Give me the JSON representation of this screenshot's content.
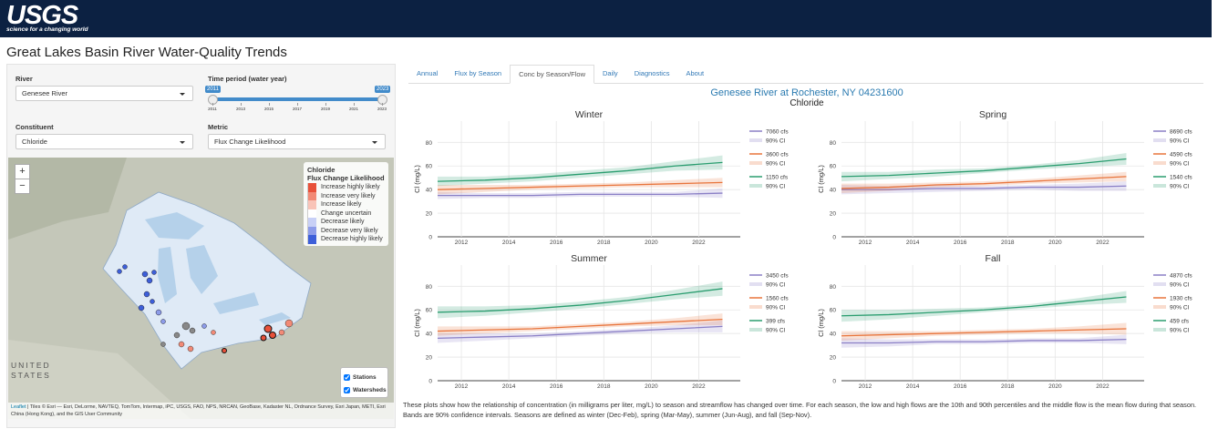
{
  "header": {
    "logo": "USGS",
    "tagline": "science for a changing world"
  },
  "title": "Great Lakes Basin River Water-Quality Trends",
  "controls": {
    "river": {
      "label": "River",
      "value": "Genesee River"
    },
    "time_period": {
      "label": "Time period (water year)",
      "min": 2011,
      "max": 2023,
      "ticks": [
        2011,
        2013,
        2015,
        2017,
        2019,
        2021,
        2023
      ]
    },
    "constituent": {
      "label": "Constituent",
      "value": "Chloride"
    },
    "metric": {
      "label": "Metric",
      "value": "Flux Change Likelihood"
    }
  },
  "map": {
    "zoom_in": "+",
    "zoom_out": "−",
    "labels": [
      "UNITED",
      "STATES"
    ],
    "legend": {
      "title": "Chloride",
      "subtitle": "Flux Change Likelihood",
      "items": [
        {
          "label": "Increase highly likely",
          "color": "#e8513a"
        },
        {
          "label": "Increase very likely",
          "color": "#f28a76"
        },
        {
          "label": "Increase likely",
          "color": "#f9c4b8"
        },
        {
          "label": "Change uncertain",
          "color": "#ffffff"
        },
        {
          "label": "Decrease likely",
          "color": "#c8d0f6"
        },
        {
          "label": "Decrease very likely",
          "color": "#8d9ce9"
        },
        {
          "label": "Decrease highly likely",
          "color": "#3d5fd9"
        }
      ]
    },
    "layers": [
      "Stations",
      "Watersheds"
    ],
    "attribution_link": "Leaflet",
    "attribution": "| Tiles © Esri — Esri, DeLorme, NAVTEQ, TomTom, Intermap, iPC, USGS, FAO, NPS, NRCAN, GeoBase, Kadaster NL, Ordnance Survey, Esri Japan, METI, Esri China (Hong Kong), and the GIS User Community"
  },
  "tabs": {
    "items": [
      "Annual",
      "Flux by Season",
      "Conc by Season/Flow",
      "Daily",
      "Diagnostics",
      "About"
    ],
    "active": 2
  },
  "plot_title": "Genesee River at Rochester, NY 04231600",
  "plot_subtitle": "Chloride",
  "plots": [
    {
      "type": "line",
      "title": "Winter",
      "y_label": "Cl (mg/L)",
      "x": [
        2011,
        2013,
        2015,
        2017,
        2019,
        2021,
        2023
      ],
      "xlim": [
        2011,
        2023.75
      ],
      "xticks": [
        2012,
        2014,
        2016,
        2018,
        2020,
        2022
      ],
      "ylim": [
        0,
        98
      ],
      "yticks": [
        0,
        20,
        40,
        60,
        80
      ],
      "grid": true,
      "series": [
        {
          "name": "7060 cfs",
          "color": "#8a7fc6",
          "ci_label": "90% CI",
          "values": [
            35,
            35,
            35,
            36,
            36,
            36,
            37
          ],
          "ci_low": [
            32,
            33,
            33,
            34,
            34,
            34,
            33
          ],
          "ci_high": [
            38,
            37,
            37,
            38,
            38,
            38,
            41
          ]
        },
        {
          "name": "3600 cfs",
          "color": "#e8743b",
          "ci_label": "90% CI",
          "values": [
            40,
            41,
            42,
            43,
            44,
            45,
            46
          ],
          "ci_low": [
            36,
            38,
            40,
            41,
            42,
            42,
            42
          ],
          "ci_high": [
            44,
            44,
            44,
            45,
            46,
            48,
            50
          ]
        },
        {
          "name": "1150 cfs",
          "color": "#2a9d6f",
          "ci_label": "90% CI",
          "values": [
            47,
            48,
            50,
            53,
            56,
            60,
            63
          ],
          "ci_low": [
            43,
            45,
            47,
            50,
            53,
            56,
            57
          ],
          "ci_high": [
            51,
            51,
            53,
            56,
            59,
            64,
            69
          ]
        }
      ]
    },
    {
      "type": "line",
      "title": "Spring",
      "y_label": "Cl (mg/L)",
      "x": [
        2011,
        2013,
        2015,
        2017,
        2019,
        2021,
        2023
      ],
      "xlim": [
        2011,
        2023.75
      ],
      "xticks": [
        2012,
        2014,
        2016,
        2018,
        2020,
        2022
      ],
      "ylim": [
        0,
        98
      ],
      "yticks": [
        0,
        20,
        40,
        60,
        80
      ],
      "grid": true,
      "series": [
        {
          "name": "8690 cfs",
          "color": "#8a7fc6",
          "ci_label": "90% CI",
          "values": [
            40,
            40,
            41,
            41,
            42,
            42,
            43
          ],
          "ci_low": [
            36,
            37,
            38,
            39,
            40,
            39,
            39
          ],
          "ci_high": [
            44,
            43,
            44,
            43,
            44,
            45,
            47
          ]
        },
        {
          "name": "4590 cfs",
          "color": "#e8743b",
          "ci_label": "90% CI",
          "values": [
            41,
            42,
            44,
            45,
            47,
            49,
            51
          ],
          "ci_low": [
            37,
            39,
            42,
            43,
            45,
            46,
            47
          ],
          "ci_high": [
            45,
            45,
            46,
            47,
            49,
            52,
            55
          ]
        },
        {
          "name": "1540 cfs",
          "color": "#2a9d6f",
          "ci_label": "90% CI",
          "values": [
            51,
            52,
            54,
            56,
            59,
            62,
            66
          ],
          "ci_low": [
            47,
            49,
            51,
            54,
            57,
            59,
            61
          ],
          "ci_high": [
            55,
            55,
            57,
            58,
            61,
            65,
            71
          ]
        }
      ]
    },
    {
      "type": "line",
      "title": "Summer",
      "y_label": "Cl (mg/L)",
      "x": [
        2011,
        2013,
        2015,
        2017,
        2019,
        2021,
        2023
      ],
      "xlim": [
        2011,
        2023.75
      ],
      "xticks": [
        2012,
        2014,
        2016,
        2018,
        2020,
        2022
      ],
      "ylim": [
        0,
        98
      ],
      "yticks": [
        0,
        20,
        40,
        60,
        80
      ],
      "grid": true,
      "series": [
        {
          "name": "3450 cfs",
          "color": "#8a7fc6",
          "ci_label": "90% CI",
          "values": [
            36,
            37,
            38,
            40,
            42,
            44,
            46
          ],
          "ci_low": [
            32,
            34,
            36,
            38,
            40,
            41,
            41
          ],
          "ci_high": [
            40,
            40,
            40,
            42,
            44,
            47,
            51
          ]
        },
        {
          "name": "1560 cfs",
          "color": "#e8743b",
          "ci_label": "90% CI",
          "values": [
            42,
            43,
            44,
            46,
            48,
            50,
            52
          ],
          "ci_low": [
            38,
            40,
            42,
            44,
            46,
            47,
            47
          ],
          "ci_high": [
            46,
            46,
            46,
            48,
            50,
            53,
            57
          ]
        },
        {
          "name": "399 cfs",
          "color": "#2a9d6f",
          "ci_label": "90% CI",
          "values": [
            58,
            59,
            61,
            64,
            68,
            73,
            78
          ],
          "ci_low": [
            53,
            55,
            58,
            61,
            65,
            69,
            72
          ],
          "ci_high": [
            63,
            63,
            64,
            67,
            71,
            77,
            84
          ]
        }
      ]
    },
    {
      "type": "line",
      "title": "Fall",
      "y_label": "Cl (mg/L)",
      "x": [
        2011,
        2013,
        2015,
        2017,
        2019,
        2021,
        2023
      ],
      "xlim": [
        2011,
        2023.75
      ],
      "xticks": [
        2012,
        2014,
        2016,
        2018,
        2020,
        2022
      ],
      "ylim": [
        0,
        98
      ],
      "yticks": [
        0,
        20,
        40,
        60,
        80
      ],
      "grid": true,
      "series": [
        {
          "name": "4870 cfs",
          "color": "#8a7fc6",
          "ci_label": "90% CI",
          "values": [
            32,
            32,
            33,
            33,
            34,
            34,
            35
          ],
          "ci_low": [
            28,
            29,
            31,
            31,
            32,
            32,
            31
          ],
          "ci_high": [
            36,
            35,
            35,
            35,
            36,
            36,
            39
          ]
        },
        {
          "name": "1930 cfs",
          "color": "#e8743b",
          "ci_label": "90% CI",
          "values": [
            38,
            39,
            40,
            41,
            42,
            43,
            44
          ],
          "ci_low": [
            34,
            36,
            38,
            39,
            40,
            40,
            39
          ],
          "ci_high": [
            42,
            42,
            42,
            43,
            44,
            46,
            49
          ]
        },
        {
          "name": "459 cfs",
          "color": "#2a9d6f",
          "ci_label": "90% CI",
          "values": [
            55,
            56,
            58,
            60,
            63,
            67,
            71
          ],
          "ci_low": [
            50,
            52,
            55,
            58,
            61,
            64,
            66
          ],
          "ci_high": [
            60,
            60,
            61,
            62,
            65,
            70,
            76
          ]
        }
      ]
    }
  ],
  "caption": "These plots show how the relationship of concentration (in milligrams per liter, mg/L) to season and streamflow has changed over time. For each season, the low and high flows are the 10th and 90th percentiles and the middle flow is the mean flow during that season. Bands are 90% confidence intervals. Seasons are defined as winter (Dec-Feb), spring (Mar-May), summer (Jun-Aug), and fall (Sep-Nov)."
}
